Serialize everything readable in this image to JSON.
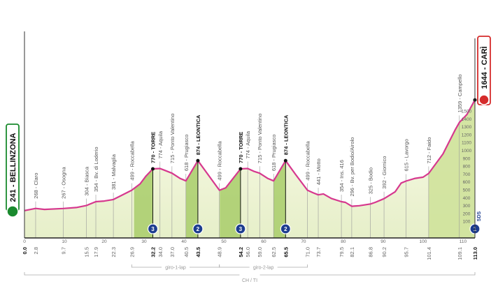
{
  "chart_data": {
    "type": "area",
    "xlim": [
      0,
      113
    ],
    "ylim": [
      0,
      1500
    ],
    "x_ticks": [
      0,
      10,
      20,
      30,
      40,
      50,
      60,
      70,
      80,
      90,
      100,
      110
    ],
    "elevation_scale": [
      100,
      200,
      300,
      400,
      500,
      600,
      700,
      800,
      900,
      1000,
      1100,
      1200,
      1300,
      1400,
      1500
    ],
    "profile": [
      [
        0,
        241
      ],
      [
        2.8,
        268
      ],
      [
        5,
        256
      ],
      [
        9.7,
        267
      ],
      [
        13,
        280
      ],
      [
        15.5,
        304
      ],
      [
        17.9,
        354
      ],
      [
        20,
        362
      ],
      [
        22.3,
        381
      ],
      [
        24,
        425
      ],
      [
        26.9,
        499
      ],
      [
        29,
        580
      ],
      [
        30.5,
        680
      ],
      [
        32.2,
        770
      ],
      [
        34,
        774
      ],
      [
        35,
        755
      ],
      [
        37,
        715
      ],
      [
        39,
        650
      ],
      [
        40.5,
        618
      ],
      [
        43.5,
        874
      ],
      [
        46,
        700
      ],
      [
        48.9,
        499
      ],
      [
        50.5,
        530
      ],
      [
        54.2,
        770
      ],
      [
        56,
        774
      ],
      [
        57.5,
        740
      ],
      [
        59,
        715
      ],
      [
        61,
        650
      ],
      [
        62.5,
        618
      ],
      [
        65.5,
        874
      ],
      [
        68,
        700
      ],
      [
        71,
        499
      ],
      [
        72.5,
        465
      ],
      [
        73.7,
        441
      ],
      [
        75,
        452
      ],
      [
        77,
        395
      ],
      [
        79.5,
        354
      ],
      [
        80.5,
        345
      ],
      [
        82.1,
        296
      ],
      [
        84,
        303
      ],
      [
        86.8,
        325
      ],
      [
        88,
        345
      ],
      [
        90.2,
        392
      ],
      [
        93,
        480
      ],
      [
        94.5,
        590
      ],
      [
        95.7,
        615
      ],
      [
        98,
        650
      ],
      [
        100,
        665
      ],
      [
        101.4,
        712
      ],
      [
        105,
        960
      ],
      [
        108,
        1260
      ],
      [
        109.1,
        1359
      ],
      [
        111,
        1460
      ],
      [
        113,
        1644
      ]
    ],
    "climb_zones": [
      [
        27.5,
        32.2
      ],
      [
        40.5,
        43.5
      ],
      [
        49,
        54.2
      ],
      [
        62.5,
        65.5
      ],
      [
        101.4,
        113
      ]
    ],
    "waypoints": [
      {
        "km": 2.8,
        "km_label": "2.8",
        "label": "268 - Claro"
      },
      {
        "km": 9.7,
        "km_label": "9.7",
        "label": "267 - Osogna"
      },
      {
        "km": 15.5,
        "km_label": "15.5",
        "label": "304 - Biasca"
      },
      {
        "km": 17.9,
        "km_label": "17.9",
        "label": "354 - Bv. di Loderio"
      },
      {
        "km": 22.3,
        "km_label": "22.3",
        "label": "381 - Malvaglia"
      },
      {
        "km": 26.9,
        "km_label": "26.9",
        "label": "499 - Roccabella"
      },
      {
        "km": 32.2,
        "km_label": "32.2",
        "label": "770 - TORRE",
        "summit": true,
        "kom": "3"
      },
      {
        "km": 34.0,
        "km_label": "34.0",
        "label": "774 - Aquila"
      },
      {
        "km": 37.0,
        "km_label": "37.0",
        "label": "715 - Ponto Valentino"
      },
      {
        "km": 40.5,
        "km_label": "40.5",
        "label": "618 - Prugiasco"
      },
      {
        "km": 43.5,
        "km_label": "43.5",
        "label": "874 - LEONTICA",
        "summit": true,
        "kom": "2"
      },
      {
        "km": 48.9,
        "km_label": "48.9",
        "label": "499 - Roccabella"
      },
      {
        "km": 54.2,
        "km_label": "54.2",
        "label": "770 - TORRE",
        "summit": true,
        "kom": "3"
      },
      {
        "km": 56.0,
        "km_label": "56.0",
        "label": "774 - Aquila"
      },
      {
        "km": 59.0,
        "km_label": "59.0",
        "label": "715 - Ponto Valentino"
      },
      {
        "km": 62.5,
        "km_label": "62.5",
        "label": "618 - Prugiasco"
      },
      {
        "km": 65.5,
        "km_label": "65.5",
        "label": "874 - LEONTICA",
        "summit": true,
        "kom": "2"
      },
      {
        "km": 71.0,
        "km_label": "71.0",
        "label": "499 - Roccabella"
      },
      {
        "km": 73.7,
        "km_label": "73.7",
        "label": "441 - Motto"
      },
      {
        "km": 79.5,
        "km_label": "79.5",
        "label": "354 - Ins. 416"
      },
      {
        "km": 82.1,
        "km_label": "82.1",
        "label": "296 - Bv. per Bodio/Airolo"
      },
      {
        "km": 86.8,
        "km_label": "86.8",
        "label": "325 - Bodio"
      },
      {
        "km": 90.2,
        "km_label": "90.2",
        "label": "392 - Giornico"
      },
      {
        "km": 95.7,
        "km_label": "95.7",
        "label": "615 - Lavorgo"
      },
      {
        "km": 101.4,
        "km_label": "101.4",
        "label": "712 - Faido"
      },
      {
        "km": 109.1,
        "km_label": "109.1",
        "label": "1359 - Campello"
      }
    ],
    "start": {
      "km_label": "0.0",
      "label": "241 - BELLINZONA"
    },
    "finish": {
      "km_label": "113.0",
      "label": "1644 - CARÌ",
      "kom": "1",
      "tag": "SDS"
    },
    "brackets": [
      {
        "from": 26.9,
        "to": 48.9,
        "label": "giro-1-lap"
      },
      {
        "from": 48.9,
        "to": 71.0,
        "label": "giro-2-lap"
      },
      {
        "from": 0,
        "to": 113,
        "label": "CH / TI"
      }
    ],
    "colors": {
      "profile": "#d6388e",
      "climb": "#a8cc6a",
      "fill": "#f1f5dc",
      "start": "#1a8a2e",
      "finish": "#d52b2b",
      "kom": "#1d3d8f"
    }
  }
}
